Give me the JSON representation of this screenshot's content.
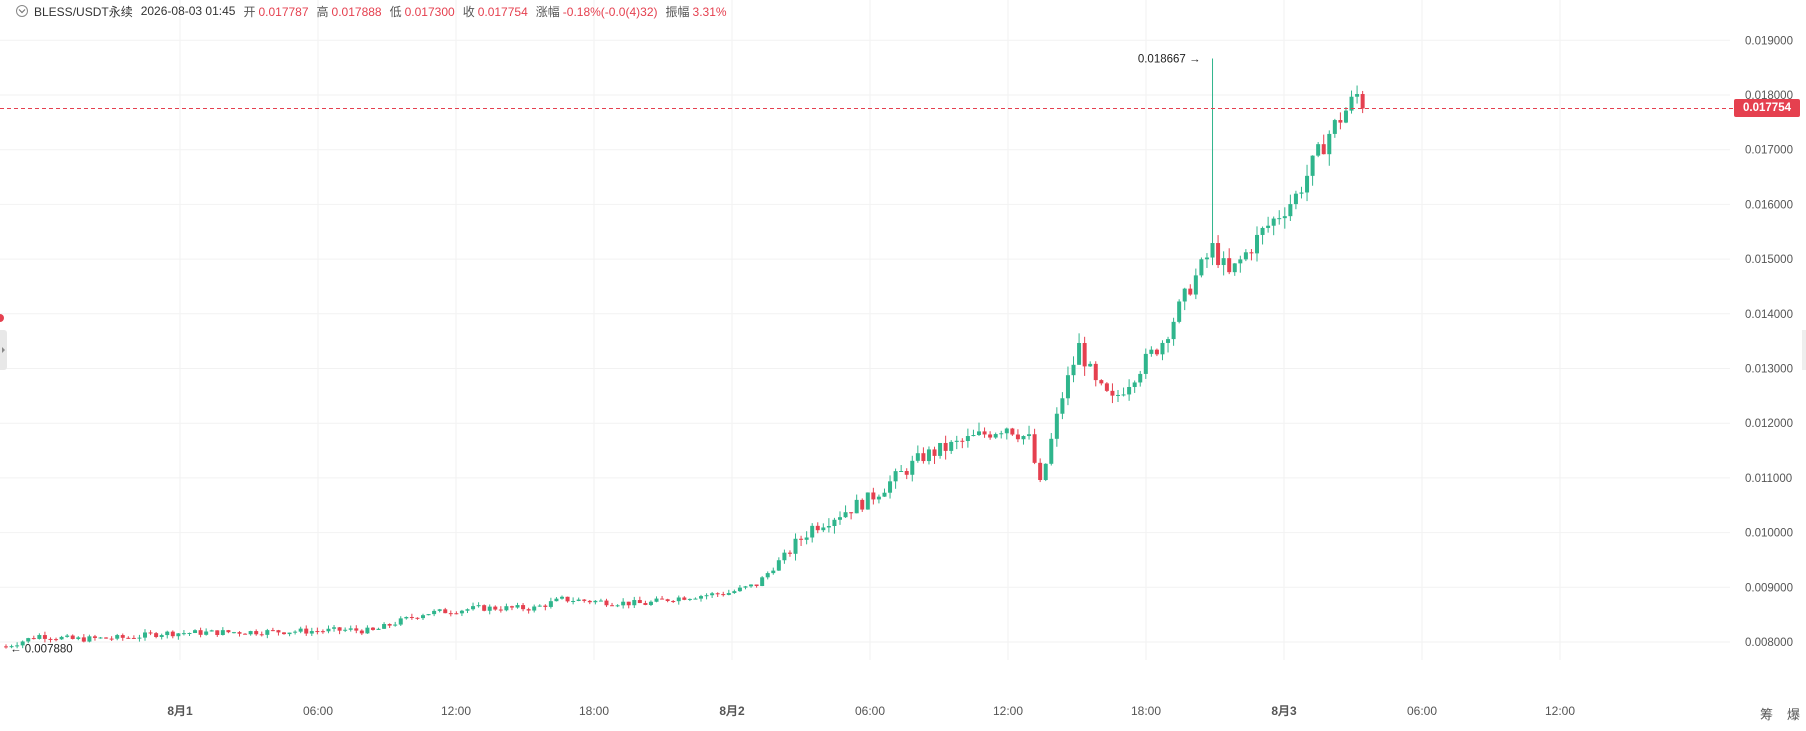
{
  "header": {
    "symbol": "BLESS/USDT永续",
    "datetime": "2026-08-03 01:45",
    "open_label": "开",
    "open": "0.017787",
    "high_label": "高",
    "high": "0.017888",
    "low_label": "低",
    "low": "0.017300",
    "close_label": "收",
    "close": "0.017754",
    "change_label": "涨幅",
    "change": "-0.18%(-0.0(4)32)",
    "amplitude_label": "振幅",
    "amplitude": "3.31%"
  },
  "corner_buttons": {
    "chips": "筹",
    "liquidation": "爆"
  },
  "colors": {
    "up": "#2fb58c",
    "down": "#e5404f",
    "grid": "#f2f2f2",
    "axis_text": "#555555"
  },
  "chart_data": {
    "type": "candlestick",
    "ylim": [
      0.0073,
      0.0193
    ],
    "y_ticks": [
      "0.008000",
      "0.009000",
      "0.010000",
      "0.011000",
      "0.012000",
      "0.013000",
      "0.014000",
      "0.015000",
      "0.016000",
      "0.017000",
      "0.018000",
      "0.019000"
    ],
    "y_tick_values": [
      0.008,
      0.009,
      0.01,
      0.011,
      0.012,
      0.013,
      0.014,
      0.015,
      0.016,
      0.017,
      0.018,
      0.019
    ],
    "x_ticks": [
      {
        "label": "8月1",
        "bold": true,
        "hours": 16
      },
      {
        "label": "06:00",
        "bold": false,
        "hours": 22
      },
      {
        "label": "12:00",
        "bold": false,
        "hours": 28
      },
      {
        "label": "18:00",
        "bold": false,
        "hours": 34
      },
      {
        "label": "8月2",
        "bold": true,
        "hours": 40
      },
      {
        "label": "06:00",
        "bold": false,
        "hours": 46
      },
      {
        "label": "12:00",
        "bold": false,
        "hours": 52
      },
      {
        "label": "18:00",
        "bold": false,
        "hours": 58
      },
      {
        "label": "8月3",
        "bold": true,
        "hours": 64
      },
      {
        "label": "06:00",
        "bold": false,
        "hours": 70
      },
      {
        "label": "12:00",
        "bold": false,
        "hours": 76
      }
    ],
    "last_price": "0.017754",
    "last_price_value": 0.017754,
    "max_label": "0.018667",
    "max_value": 0.018667,
    "max_index": 217,
    "min_label": "0.007880",
    "min_value": 0.00788,
    "min_index": 0,
    "candle_count": 220,
    "anchors": [
      [
        0,
        0.00792
      ],
      [
        6,
        0.00812
      ],
      [
        12,
        0.00805
      ],
      [
        22,
        0.00808
      ],
      [
        28,
        0.00816
      ],
      [
        40,
        0.00818
      ],
      [
        55,
        0.0082
      ],
      [
        62,
        0.00822
      ],
      [
        66,
        0.0082
      ],
      [
        70,
        0.00835
      ],
      [
        75,
        0.00852
      ],
      [
        85,
        0.00862
      ],
      [
        95,
        0.00862
      ],
      [
        100,
        0.00878
      ],
      [
        110,
        0.00872
      ],
      [
        115,
        0.0087
      ],
      [
        120,
        0.0088
      ],
      [
        130,
        0.0089
      ],
      [
        135,
        0.00905
      ],
      [
        145,
        0.0101
      ],
      [
        155,
        0.0106
      ],
      [
        165,
        0.0114
      ],
      [
        180,
        0.01195
      ],
      [
        184,
        0.0117
      ],
      [
        186,
        0.01085
      ],
      [
        190,
        0.0125
      ],
      [
        193,
        0.0134
      ],
      [
        196,
        0.0127
      ],
      [
        199,
        0.0124
      ],
      [
        203,
        0.0129
      ],
      [
        208,
        0.0135
      ],
      [
        213,
        0.0145
      ],
      [
        217,
        0.0152
      ],
      [
        220,
        0.0147
      ],
      [
        226,
        0.0155
      ],
      [
        232,
        0.01615
      ],
      [
        238,
        0.0173
      ],
      [
        243,
        0.018
      ],
      [
        244,
        0.01777
      ]
    ]
  }
}
